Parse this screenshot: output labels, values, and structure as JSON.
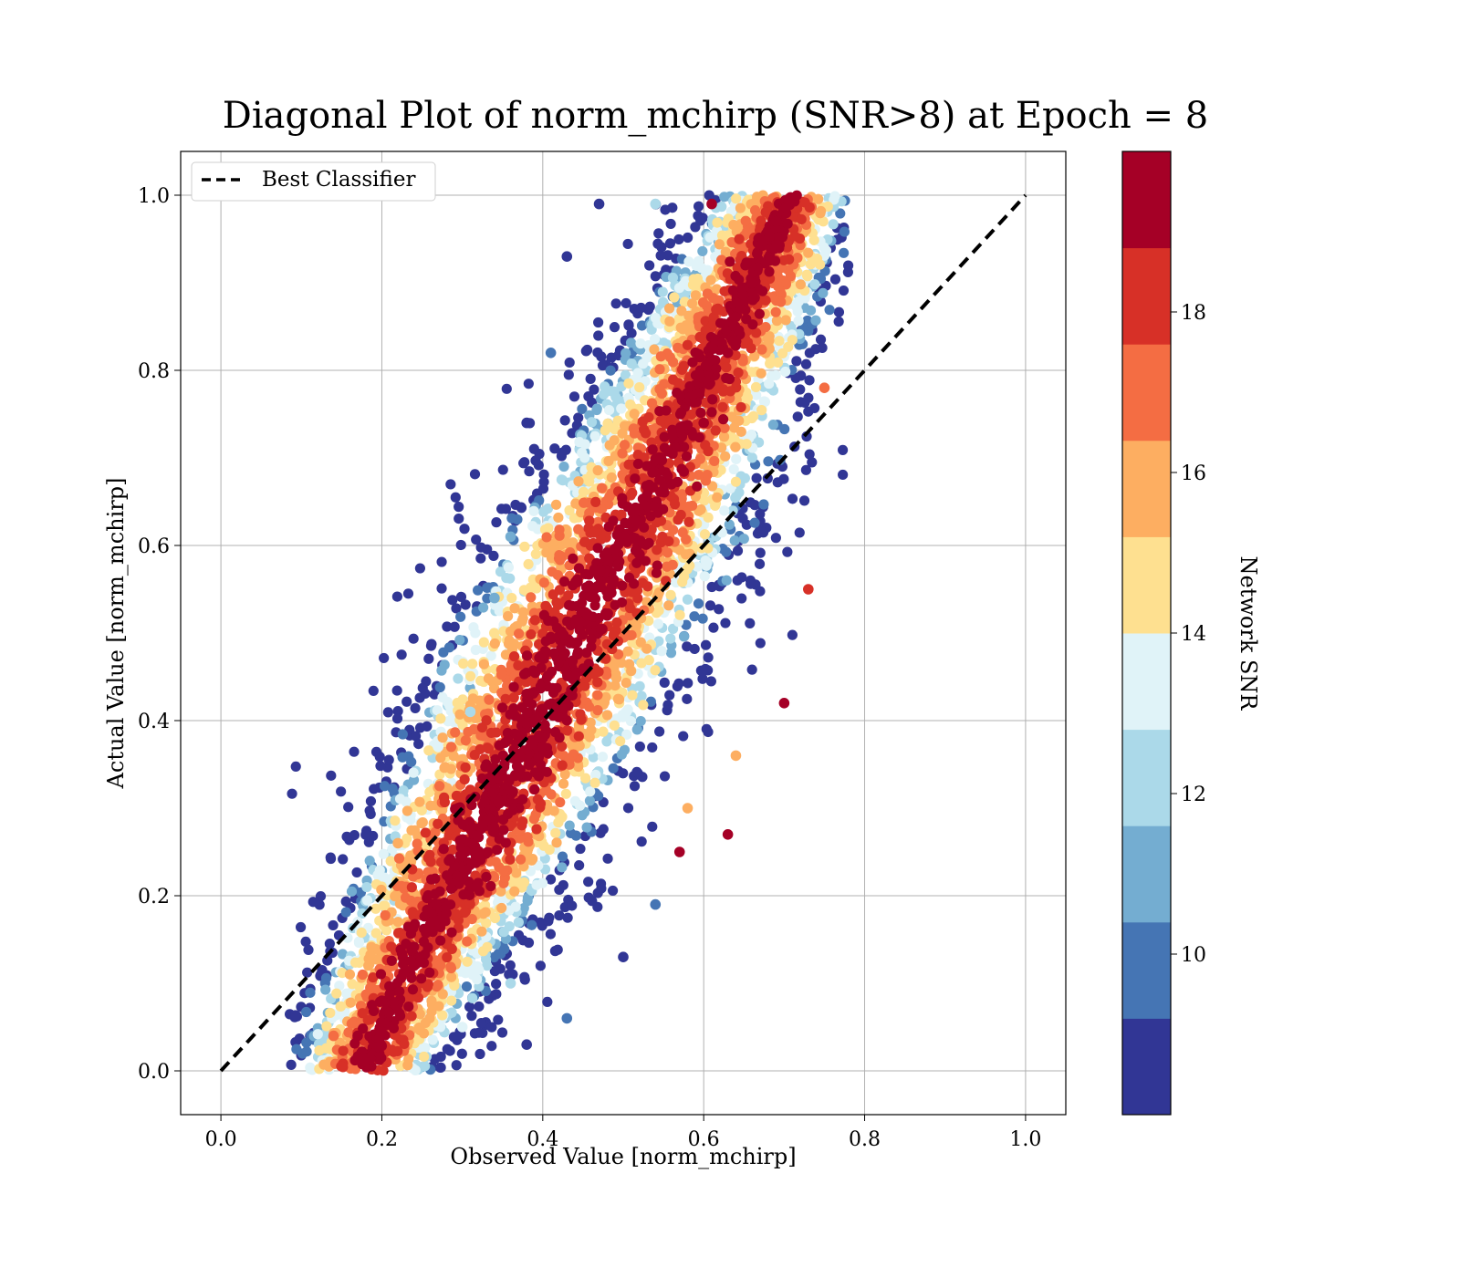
{
  "chart_data": {
    "type": "scatter",
    "title": "Diagonal Plot of norm_mchirp (SNR>8) at Epoch = 8",
    "xlabel": "Observed Value [norm_mchirp]",
    "ylabel": "Actual Value [norm_mchirp]",
    "xlim": [
      -0.05,
      1.05
    ],
    "ylim": [
      -0.05,
      1.05
    ],
    "xticks": [
      "0.0",
      "0.2",
      "0.4",
      "0.6",
      "0.8",
      "1.0"
    ],
    "yticks": [
      "0.0",
      "0.2",
      "0.4",
      "0.6",
      "0.8",
      "1.0"
    ],
    "grid": true,
    "legend_position": "top-left",
    "reference_line": {
      "name": "Best Classifier",
      "x": [
        0.0,
        1.0
      ],
      "y": [
        0.0,
        1.0
      ],
      "style": "dashed",
      "color": "#000000"
    },
    "colorbar": {
      "label": "Network SNR",
      "min": 8,
      "max": 20,
      "ticks": [
        "10",
        "12",
        "14",
        "16",
        "18"
      ],
      "tick_values": [
        10,
        12,
        14,
        16,
        18
      ],
      "colors": [
        "#313695",
        "#4575b4",
        "#74add1",
        "#abd9e9",
        "#e0f3f8",
        "#fee090",
        "#fdae61",
        "#f46d43",
        "#d73027",
        "#a50026"
      ]
    },
    "series": [
      {
        "points": [
          {
            "x": 0.17,
            "y": 0.04,
            "snr": 19.5
          },
          {
            "x": 0.2,
            "y": 0.08,
            "snr": 19.8
          },
          {
            "x": 0.24,
            "y": 0.12,
            "snr": 19.7
          },
          {
            "x": 0.28,
            "y": 0.18,
            "snr": 19.9
          },
          {
            "x": 0.32,
            "y": 0.25,
            "snr": 19.6
          },
          {
            "x": 0.36,
            "y": 0.32,
            "snr": 19.9
          },
          {
            "x": 0.4,
            "y": 0.38,
            "snr": 19.8
          },
          {
            "x": 0.44,
            "y": 0.45,
            "snr": 19.7
          },
          {
            "x": 0.48,
            "y": 0.52,
            "snr": 19.9
          },
          {
            "x": 0.52,
            "y": 0.59,
            "snr": 19.6
          },
          {
            "x": 0.56,
            "y": 0.67,
            "snr": 19.9
          },
          {
            "x": 0.6,
            "y": 0.74,
            "snr": 19.8
          },
          {
            "x": 0.63,
            "y": 0.82,
            "snr": 19.7
          },
          {
            "x": 0.66,
            "y": 0.9,
            "snr": 19.9
          },
          {
            "x": 0.69,
            "y": 0.97,
            "snr": 19.5
          },
          {
            "x": 0.38,
            "y": 0.74,
            "snr": 8.5
          },
          {
            "x": 0.43,
            "y": 0.93,
            "snr": 8.3
          },
          {
            "x": 0.47,
            "y": 0.99,
            "snr": 9.2
          },
          {
            "x": 0.41,
            "y": 0.82,
            "snr": 9.4
          },
          {
            "x": 0.36,
            "y": 0.61,
            "snr": 11.2
          },
          {
            "x": 0.34,
            "y": 0.54,
            "snr": 10.5
          },
          {
            "x": 0.31,
            "y": 0.41,
            "snr": 12.3
          },
          {
            "x": 0.38,
            "y": 0.03,
            "snr": 8.8
          },
          {
            "x": 0.43,
            "y": 0.06,
            "snr": 9.6
          },
          {
            "x": 0.5,
            "y": 0.13,
            "snr": 8.7
          },
          {
            "x": 0.54,
            "y": 0.19,
            "snr": 9.5
          },
          {
            "x": 0.3,
            "y": 0.05,
            "snr": 13.4
          },
          {
            "x": 0.36,
            "y": 0.1,
            "snr": 12.5
          },
          {
            "x": 0.58,
            "y": 0.3,
            "snr": 15.2
          },
          {
            "x": 0.64,
            "y": 0.36,
            "snr": 16.1
          },
          {
            "x": 0.7,
            "y": 0.42,
            "snr": 19.5
          },
          {
            "x": 0.73,
            "y": 0.55,
            "snr": 18.4
          },
          {
            "x": 0.75,
            "y": 0.78,
            "snr": 16.5
          },
          {
            "x": 0.14,
            "y": 0.04,
            "snr": 17.2
          },
          {
            "x": 0.22,
            "y": 0.26,
            "snr": 15.6
          },
          {
            "x": 0.27,
            "y": 0.37,
            "snr": 13.6
          },
          {
            "x": 0.61,
            "y": 0.99,
            "snr": 18.8
          },
          {
            "x": 0.54,
            "y": 0.99,
            "snr": 12.1
          },
          {
            "x": 0.63,
            "y": 0.27,
            "snr": 19.7
          },
          {
            "x": 0.57,
            "y": 0.25,
            "snr": 19.2
          }
        ]
      }
    ]
  }
}
